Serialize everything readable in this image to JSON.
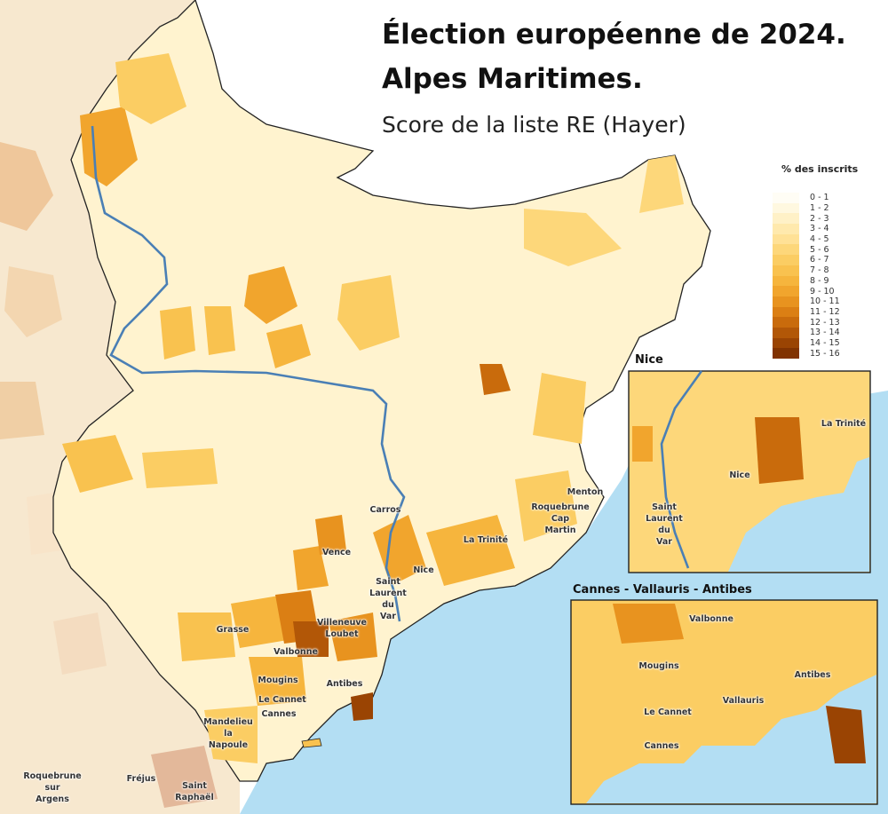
{
  "title_line1": "Élection européenne de 2024.",
  "title_line2": "Alpes Maritimes.",
  "subtitle": "Score de la liste RE (Hayer)",
  "legend": {
    "title": "% des inscrits",
    "classes": [
      {
        "label": "0 - 1",
        "color": "#fffdf5"
      },
      {
        "label": "1 - 2",
        "color": "#fff8e0"
      },
      {
        "label": "2 - 3",
        "color": "#fff1c7"
      },
      {
        "label": "3 - 4",
        "color": "#ffe9ad"
      },
      {
        "label": "4 - 5",
        "color": "#ffe196"
      },
      {
        "label": "5 - 6",
        "color": "#fdd77a"
      },
      {
        "label": "6 - 7",
        "color": "#fbcd63"
      },
      {
        "label": "7 - 8",
        "color": "#f9c24f"
      },
      {
        "label": "8 - 9",
        "color": "#f6b53d"
      },
      {
        "label": "9 - 10",
        "color": "#f1a52d"
      },
      {
        "label": "10 - 11",
        "color": "#e8931f"
      },
      {
        "label": "11 - 12",
        "color": "#db7f14"
      },
      {
        "label": "12 - 13",
        "color": "#c96b0c"
      },
      {
        "label": "13 - 14",
        "color": "#b25707"
      },
      {
        "label": "14 - 15",
        "color": "#9a4403"
      },
      {
        "label": "15 - 16",
        "color": "#813301"
      }
    ]
  },
  "colors": {
    "sea": "#b3def3",
    "river": "#4a7fb5",
    "border": "#222222",
    "outside_dept": "#f7e8cf"
  },
  "places": {
    "menton": "Menton",
    "roquebrune": "Roquebrune",
    "cap": "Cap",
    "martin": "Martin",
    "carros": "Carros",
    "la_trinite": "La Trinité",
    "vence": "Vence",
    "nice": "Nice",
    "saint": "Saint",
    "laurent": "Laurent",
    "du": "du",
    "var": "Var",
    "villeneuve": "Villeneuve",
    "loubet": "Loubet",
    "grasse": "Grasse",
    "valbonne": "Valbonne",
    "mougins": "Mougins",
    "antibes": "Antibes",
    "le_cannet": "Le Cannet",
    "cannes": "Cannes",
    "mandelieu": "Mandelieu",
    "la": "la",
    "napoule": "Napoule",
    "roquebrune_sur_argens_1": "Roquebrune",
    "roquebrune_sur_argens_2": "sur",
    "roquebrune_sur_argens_3": "Argens",
    "frejus": "Fréjus",
    "saint_raphael_1": "Saint",
    "saint_raphael_2": "Raphaël",
    "vallauris": "Vallauris"
  },
  "insets": {
    "nice_title": "Nice",
    "cannes_title": "Cannes - Vallauris - Antibes"
  }
}
